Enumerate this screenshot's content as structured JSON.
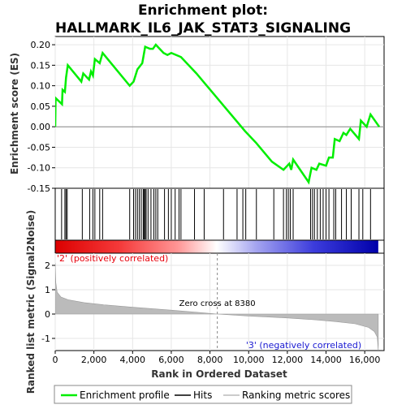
{
  "chart_data": {
    "type": "line",
    "title_line1": "Enrichment plot:",
    "title_line2": "HALLMARK_IL6_JAK_STAT3_SIGNALING",
    "es_ylabel": "Enrichment score (ES)",
    "metric_ylabel": "Ranked list metric (Signal2Noise)",
    "xlabel": "Rank in Ordered Dataset",
    "xlim": [
      0,
      17000
    ],
    "x_ticks": [
      0,
      2000,
      4000,
      6000,
      8000,
      10000,
      12000,
      14000,
      16000
    ],
    "x_tick_labels": [
      "0",
      "2,000",
      "4,000",
      "6,000",
      "8,000",
      "10,000",
      "12,000",
      "14,000",
      "16,000"
    ],
    "es_ylim": [
      -0.15,
      0.22
    ],
    "es_y_ticks": [
      -0.15,
      -0.1,
      -0.05,
      0.0,
      0.05,
      0.1,
      0.15,
      0.2
    ],
    "es_y_tick_labels": [
      "-0.15",
      "-0.10",
      "-0.05",
      "0.00",
      "0.05",
      "0.10",
      "0.15",
      "0.20"
    ],
    "metric_ylim": [
      -1.5,
      2.5
    ],
    "metric_y_ticks": [
      -1,
      0,
      1,
      2
    ],
    "metric_y_tick_labels": [
      "-1",
      "0",
      "1",
      "2"
    ],
    "positive_label": "'2' (positively correlated)",
    "negative_label": "'3' (negatively correlated)",
    "zero_cross_label": "Zero cross at 8380",
    "zero_cross": 8380,
    "total_genes": 16700,
    "legend": [
      {
        "label": "Enrichment profile",
        "color": "#00ee00"
      },
      {
        "label": "Hits",
        "color": "#000000"
      },
      {
        "label": "Ranking metric scores",
        "color": "#bbbbbb"
      }
    ],
    "es_color": "#00ee00",
    "es_profile": [
      [
        0,
        0.0
      ],
      [
        20,
        0.07
      ],
      [
        350,
        0.055
      ],
      [
        380,
        0.09
      ],
      [
        500,
        0.085
      ],
      [
        560,
        0.12
      ],
      [
        650,
        0.15
      ],
      [
        1350,
        0.11
      ],
      [
        1450,
        0.13
      ],
      [
        1750,
        0.115
      ],
      [
        1850,
        0.135
      ],
      [
        1950,
        0.125
      ],
      [
        2050,
        0.165
      ],
      [
        2300,
        0.155
      ],
      [
        2450,
        0.18
      ],
      [
        3850,
        0.1
      ],
      [
        4050,
        0.11
      ],
      [
        4250,
        0.14
      ],
      [
        4500,
        0.155
      ],
      [
        4650,
        0.195
      ],
      [
        4900,
        0.19
      ],
      [
        5050,
        0.19
      ],
      [
        5200,
        0.2
      ],
      [
        5600,
        0.18
      ],
      [
        5800,
        0.175
      ],
      [
        6000,
        0.18
      ],
      [
        6500,
        0.17
      ],
      [
        7300,
        0.13
      ],
      [
        9800,
        -0.01
      ],
      [
        10400,
        -0.04
      ],
      [
        11200,
        -0.085
      ],
      [
        11800,
        -0.105
      ],
      [
        12100,
        -0.09
      ],
      [
        12200,
        -0.105
      ],
      [
        12300,
        -0.08
      ],
      [
        13100,
        -0.135
      ],
      [
        13250,
        -0.1
      ],
      [
        13500,
        -0.105
      ],
      [
        13650,
        -0.09
      ],
      [
        14000,
        -0.095
      ],
      [
        14150,
        -0.075
      ],
      [
        14350,
        -0.075
      ],
      [
        14450,
        -0.03
      ],
      [
        14700,
        -0.035
      ],
      [
        14900,
        -0.015
      ],
      [
        15050,
        -0.02
      ],
      [
        15250,
        -0.005
      ],
      [
        15700,
        -0.03
      ],
      [
        15800,
        0.015
      ],
      [
        16100,
        0.0
      ],
      [
        16300,
        0.03
      ],
      [
        16750,
        0.0
      ]
    ],
    "hits": [
      330,
      500,
      560,
      620,
      1400,
      1780,
      1950,
      2050,
      2300,
      2450,
      3850,
      4050,
      4150,
      4250,
      4350,
      4450,
      4550,
      4600,
      4650,
      4700,
      4800,
      4950,
      5100,
      5200,
      5300,
      5650,
      5850,
      6000,
      6200,
      6400,
      6500,
      7200,
      7700,
      8700,
      9400,
      9700,
      9850,
      10400,
      11300,
      11800,
      11950,
      12050,
      12150,
      12300,
      13200,
      13300,
      13400,
      13550,
      13700,
      13850,
      14000,
      14150,
      14400,
      14500,
      14800,
      15050,
      15300,
      15700,
      15900,
      16300
    ],
    "metric_curve": [
      [
        0,
        2.1
      ],
      [
        30,
        1.3
      ],
      [
        100,
        0.9
      ],
      [
        300,
        0.7
      ],
      [
        700,
        0.58
      ],
      [
        1500,
        0.47
      ],
      [
        2500,
        0.38
      ],
      [
        4000,
        0.28
      ],
      [
        6000,
        0.16
      ],
      [
        7500,
        0.06
      ],
      [
        8380,
        0.0
      ],
      [
        10000,
        -0.08
      ],
      [
        12000,
        -0.16
      ],
      [
        13500,
        -0.24
      ],
      [
        14500,
        -0.31
      ],
      [
        15500,
        -0.4
      ],
      [
        16200,
        -0.55
      ],
      [
        16500,
        -0.72
      ],
      [
        16650,
        -0.95
      ],
      [
        16700,
        -1.5
      ]
    ],
    "color_bar_stops": [
      {
        "frac": 0.0,
        "color": "#dc0000"
      },
      {
        "frac": 0.2,
        "color": "#f53a3a"
      },
      {
        "frac": 0.38,
        "color": "#ff9696"
      },
      {
        "frac": 0.5,
        "color": "#ffffff"
      },
      {
        "frac": 0.62,
        "color": "#a6a6f0"
      },
      {
        "frac": 0.8,
        "color": "#3c3cdc"
      },
      {
        "frac": 1.0,
        "color": "#0000aa"
      }
    ]
  }
}
